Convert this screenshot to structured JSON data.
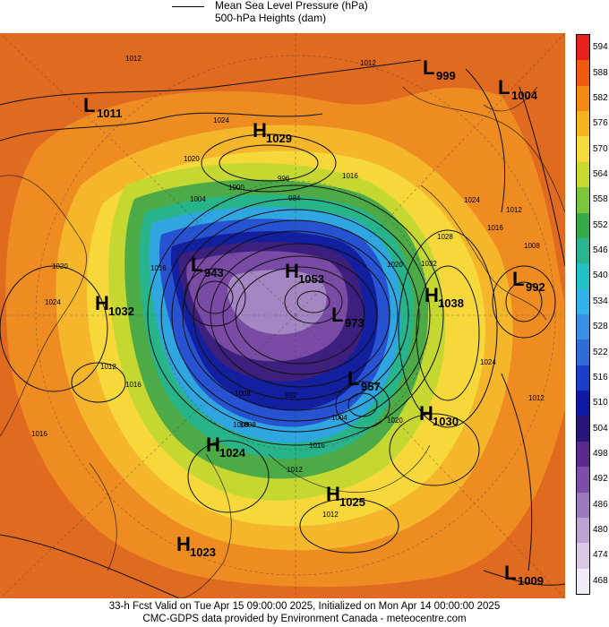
{
  "legend": {
    "line1": "Mean Sea Level Pressure (hPa)",
    "line2": "500-hPa Heights (dam)"
  },
  "colorbar": {
    "labels": [
      "594",
      "588",
      "582",
      "576",
      "570",
      "564",
      "558",
      "552",
      "546",
      "540",
      "534",
      "528",
      "522",
      "516",
      "510",
      "504",
      "498",
      "492",
      "486",
      "480",
      "474",
      "468"
    ],
    "colors": [
      "#e8211f",
      "#ee5a12",
      "#f28a14",
      "#f6b51f",
      "#f6d93a",
      "#c6da2f",
      "#7cc53f",
      "#37a948",
      "#28b48c",
      "#22c1c6",
      "#32b3ea",
      "#3b8fe5",
      "#2d6cd9",
      "#1d3ec9",
      "#1019a5",
      "#2a1678",
      "#5a2b8e",
      "#7c4ea7",
      "#9d79bd",
      "#bea2d2",
      "#d9c7e6",
      "#f1ebf6"
    ]
  },
  "map_colors": {
    "h588": "#e06a1f",
    "h582": "#ee8c22",
    "h576": "#f5b62b",
    "h570": "#f6d83a",
    "h564": "#c5d832",
    "h558": "#4caa47",
    "h552": "#28b48b",
    "h540": "#2fa6e0",
    "h522": "#2752d2",
    "h510": "#121f9e",
    "h498": "#3d1f7e",
    "h486": "#7a4ba5",
    "h474": "#a486c2"
  },
  "pressure_systems": [
    {
      "type": "L",
      "value": "1011"
    },
    {
      "type": "H",
      "value": "1029"
    },
    {
      "type": "L",
      "value": "999"
    },
    {
      "type": "L",
      "value": "1004"
    },
    {
      "type": "L",
      "value": "943"
    },
    {
      "type": "H",
      "value": "1053"
    },
    {
      "type": "L",
      "value": "973"
    },
    {
      "type": "H",
      "value": "1038"
    },
    {
      "type": "L",
      "value": "992"
    },
    {
      "type": "H",
      "value": "1032"
    },
    {
      "type": "L",
      "value": "957"
    },
    {
      "type": "H",
      "value": "1030"
    },
    {
      "type": "H",
      "value": "1024"
    },
    {
      "type": "H",
      "value": "1025"
    },
    {
      "type": "H",
      "value": "1023"
    },
    {
      "type": "L",
      "value": "1009"
    }
  ],
  "isobar_labels": [
    "1012",
    "1024",
    "1020",
    "1012",
    "1016",
    "1004",
    "1000",
    "996",
    "984",
    "1008",
    "1016",
    "1024",
    "1020",
    "1028",
    "1032",
    "1012",
    "1024",
    "1012",
    "1004",
    "1016",
    "1012",
    "1008",
    "1016",
    "992",
    "1020",
    "1024",
    "1016",
    "1012",
    "1008",
    "1020",
    "1012",
    "1008",
    "1016"
  ],
  "footer": {
    "line1": "33-h Fcst Valid on Tue Apr 15 09:00:00 2025, Initialized on Mon Apr 14 00:00:00 2025",
    "line2": "CMC-GDPS data provided by Environment Canada - meteocentre.com"
  }
}
